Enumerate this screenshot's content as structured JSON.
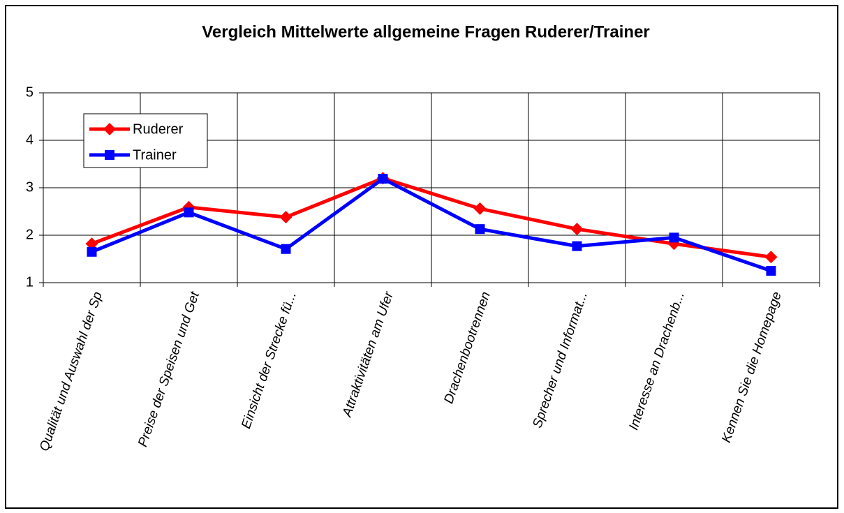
{
  "chart_data": {
    "type": "line",
    "title": "Vergleich Mittelwerte allgemeine Fragen Ruderer/Trainer",
    "categories": [
      "Qualität und Auswahl der Sp",
      "Preise der Speisen und Get",
      "Einsicht der Strecke fü...",
      "Attraktivitäten am Ufer",
      "Drachenbootrennen",
      "Sprecher und Informat...",
      "Interesse an Drachenb...",
      "Kennen Sie die Homepage"
    ],
    "series": [
      {
        "name": "Ruderer",
        "color": "#ff0000",
        "marker": "diamond",
        "values": [
          1.82,
          2.59,
          2.38,
          3.2,
          2.56,
          2.13,
          1.82,
          1.54
        ]
      },
      {
        "name": "Trainer",
        "color": "#0000ff",
        "marker": "square",
        "values": [
          1.65,
          2.48,
          1.71,
          3.19,
          2.13,
          1.77,
          1.95,
          1.25
        ]
      }
    ],
    "ylim": [
      1,
      5
    ],
    "yticks": [
      1,
      2,
      3,
      4,
      5
    ],
    "grid": true,
    "legend": "upper left"
  }
}
